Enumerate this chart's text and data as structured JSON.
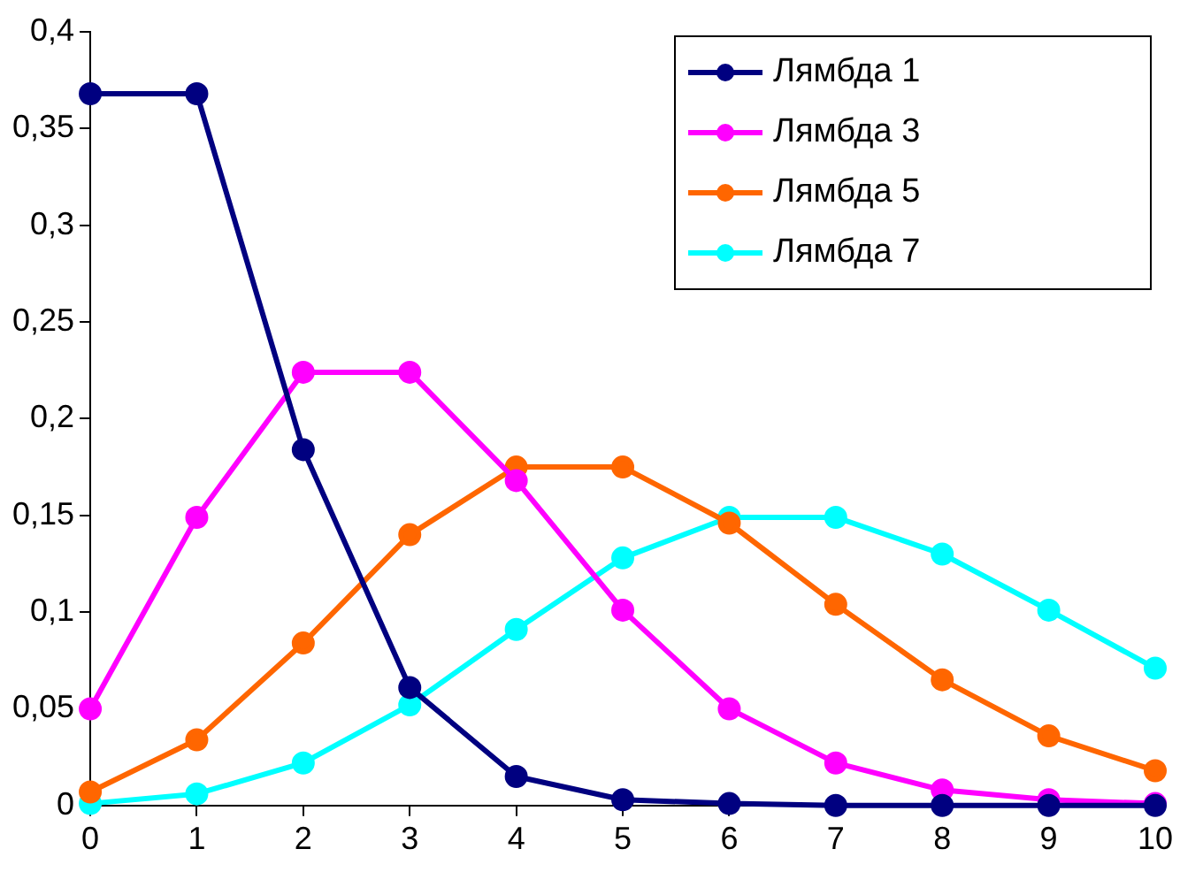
{
  "chart_data": {
    "type": "line",
    "x": [
      0,
      1,
      2,
      3,
      4,
      5,
      6,
      7,
      8,
      9,
      10
    ],
    "series": [
      {
        "name": "Лямбда 1",
        "color": "#000080",
        "values": [
          0.368,
          0.368,
          0.184,
          0.061,
          0.015,
          0.003,
          0.001,
          0,
          0,
          0,
          0
        ]
      },
      {
        "name": "Лямбда 3",
        "color": "#ff00ff",
        "values": [
          0.05,
          0.149,
          0.224,
          0.224,
          0.168,
          0.101,
          0.05,
          0.022,
          0.008,
          0.003,
          0.001
        ]
      },
      {
        "name": "Лямбда 5",
        "color": "#ff6600",
        "values": [
          0.007,
          0.034,
          0.084,
          0.14,
          0.175,
          0.175,
          0.146,
          0.104,
          0.065,
          0.036,
          0.018
        ]
      },
      {
        "name": "Лямбда 7",
        "color": "#00ffff",
        "values": [
          0.001,
          0.006,
          0.022,
          0.052,
          0.091,
          0.128,
          0.149,
          0.149,
          0.13,
          0.101,
          0.071
        ]
      }
    ],
    "xlim": [
      0,
      10
    ],
    "xticks": [
      0,
      1,
      2,
      3,
      4,
      5,
      6,
      7,
      8,
      9,
      10
    ],
    "ylim": [
      0,
      0.4
    ],
    "yticks": [
      0,
      {
        "value": 0.05,
        "label": "0,05"
      },
      {
        "value": 0.1,
        "label": "0,1"
      },
      {
        "value": 0.15,
        "label": "0,15"
      },
      {
        "value": 0.2,
        "label": "0,2"
      },
      {
        "value": 0.25,
        "label": "0,25"
      },
      {
        "value": 0.3,
        "label": "0,3"
      },
      {
        "value": 0.35,
        "label": "0,35"
      },
      {
        "value": 0.4,
        "label": "0,4"
      }
    ],
    "grid": false,
    "legend": "top right",
    "marker": "circle",
    "line_style": "solid"
  }
}
